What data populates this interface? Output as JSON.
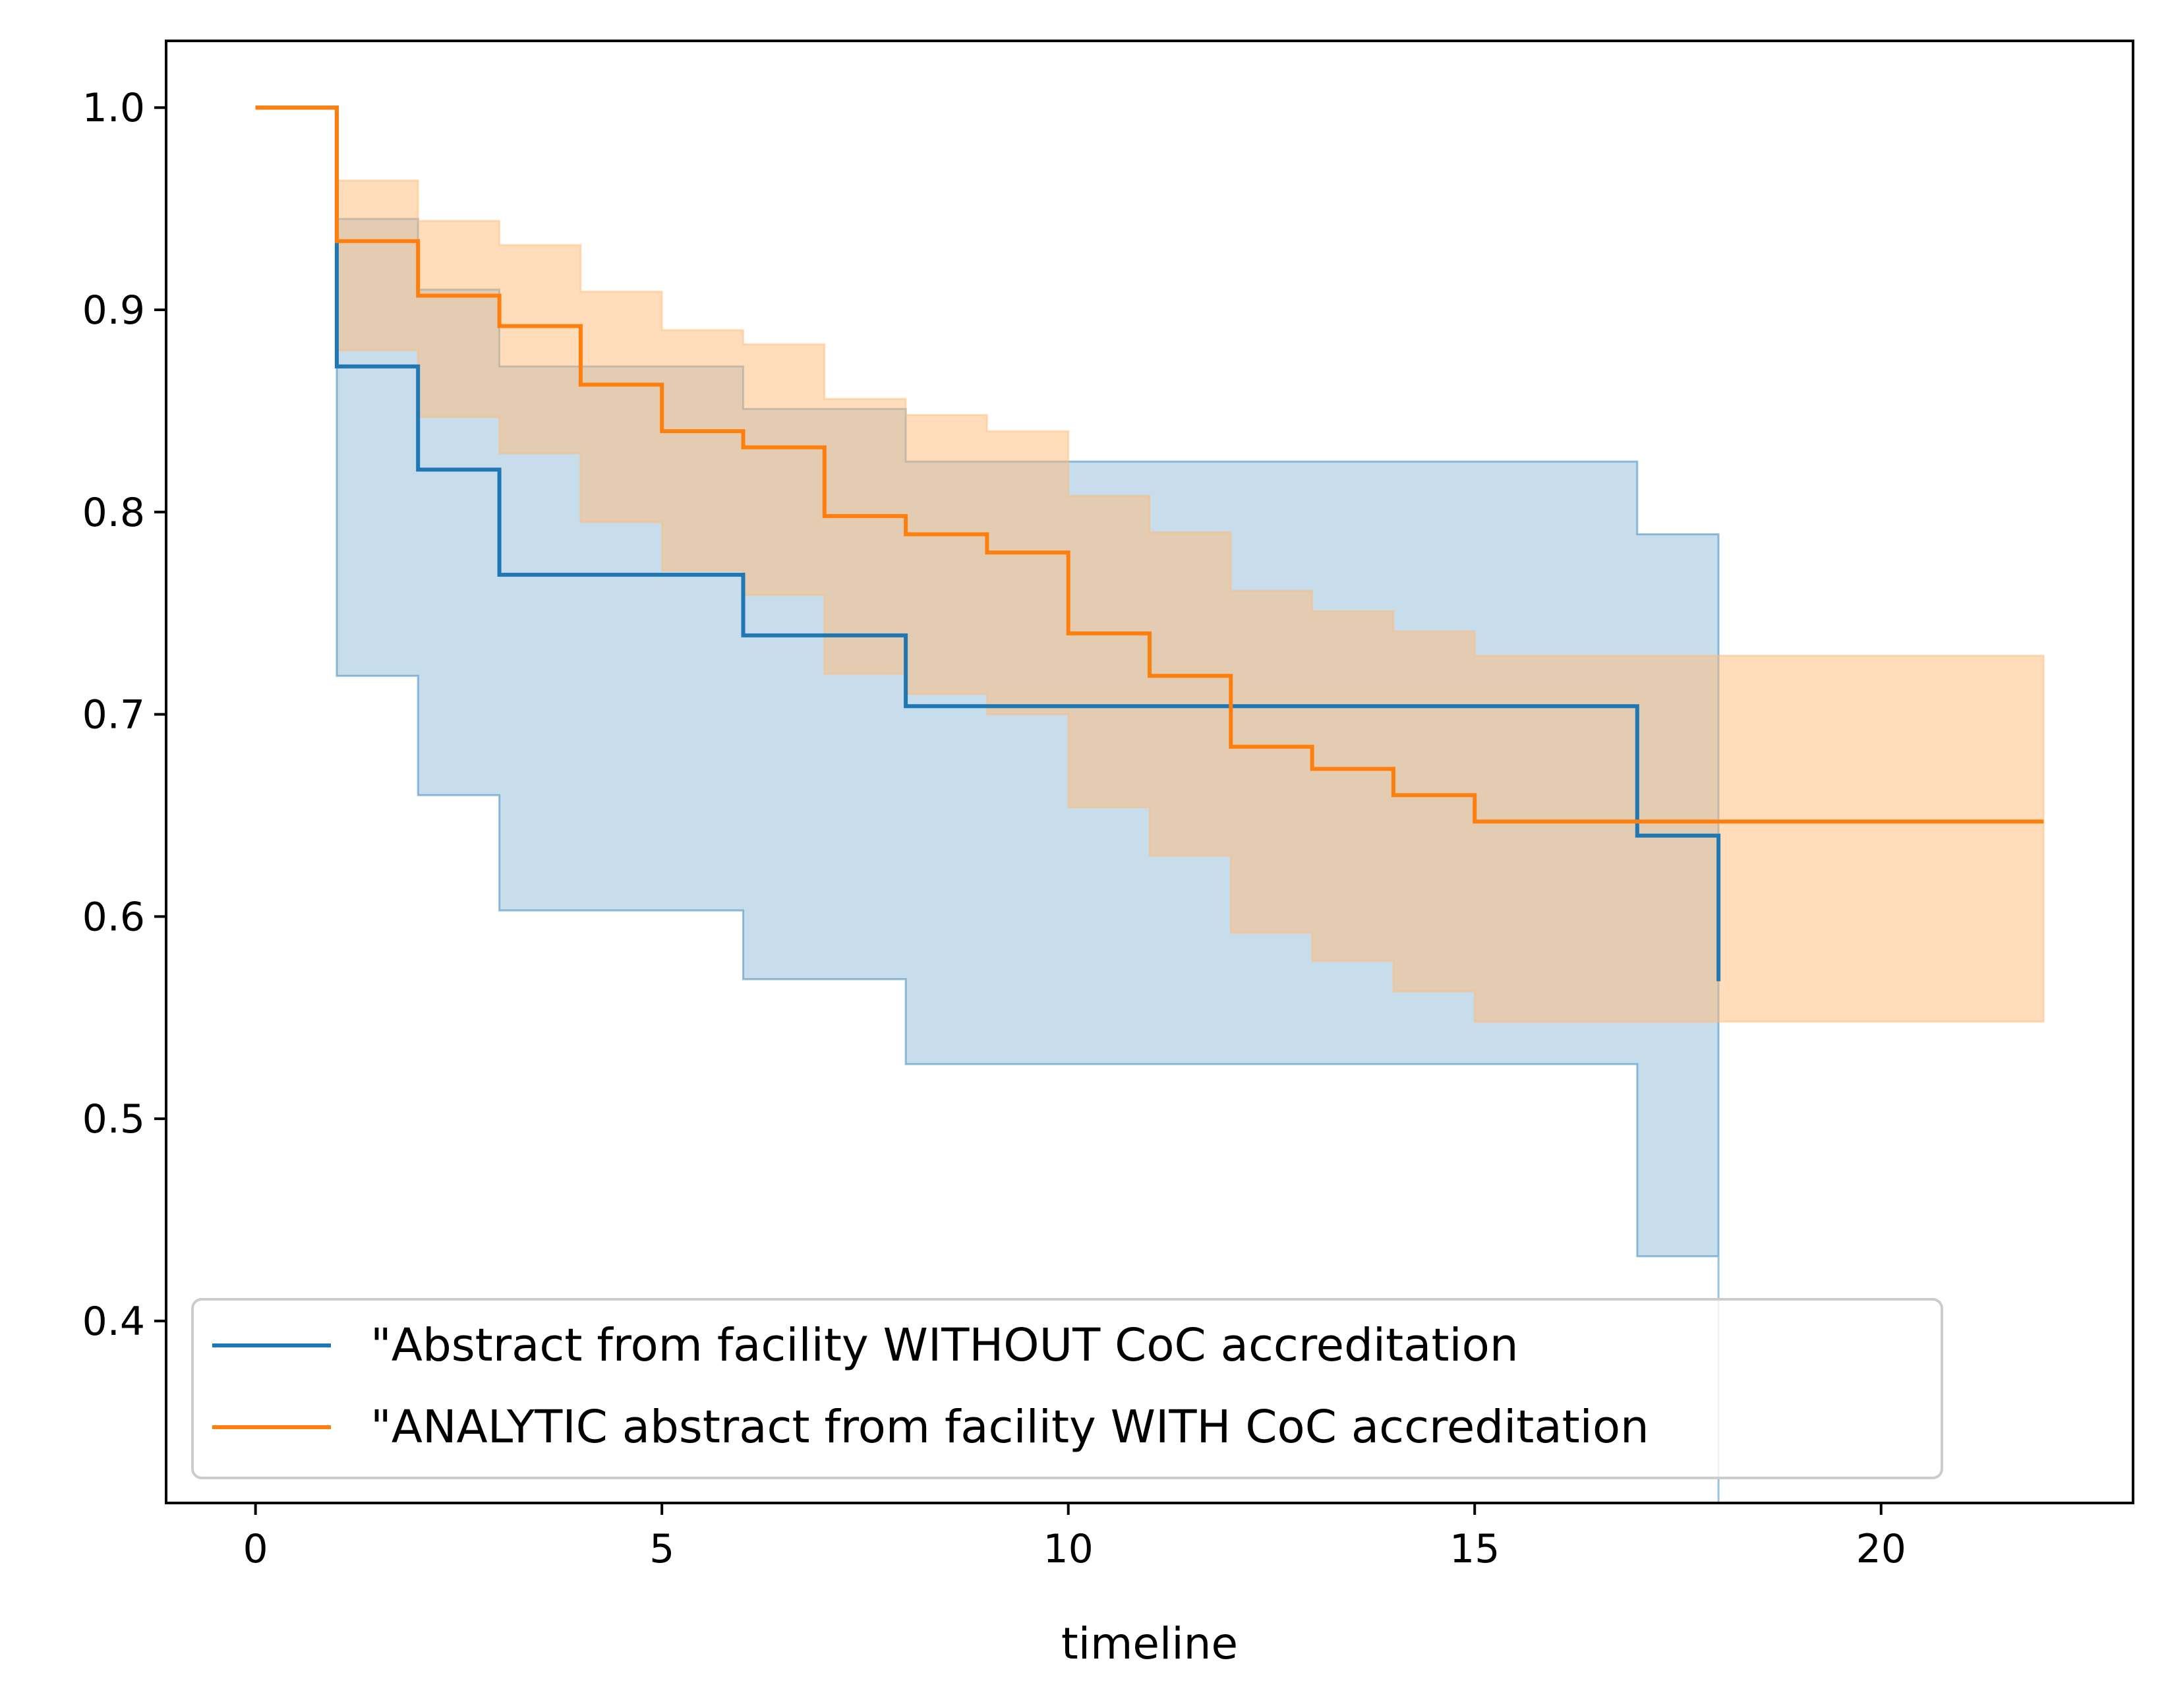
{
  "chart_data": {
    "type": "line",
    "subtype": "kaplan-meier step plot with confidence bands",
    "title": "",
    "xlabel": "timeline",
    "ylabel": "",
    "xlim": [
      -1.1,
      23.1
    ],
    "ylim": [
      0.31,
      1.033
    ],
    "xticks": [
      0,
      5,
      10,
      15,
      20
    ],
    "xtick_labels": [
      "0",
      "5",
      "10",
      "15",
      "20"
    ],
    "yticks": [
      0.4,
      0.5,
      0.6,
      0.7,
      0.8,
      0.9,
      1.0
    ],
    "ytick_labels": [
      "0.4",
      "0.5",
      "0.6",
      "0.7",
      "0.8",
      "0.9",
      "1.0"
    ],
    "grid": false,
    "legend_position": "lower-left",
    "series": [
      {
        "name": "\"Abstract from facility WITHOUT CoC accreditation",
        "color": "#1f77b4",
        "band_color": "#1f77b4",
        "x": [
          0,
          1,
          2,
          3,
          6,
          8,
          17,
          18
        ],
        "y": [
          1.0,
          0.872,
          0.821,
          0.769,
          0.739,
          0.704,
          0.64,
          0.568
        ],
        "upper": [
          1.0,
          0.945,
          0.91,
          0.872,
          0.851,
          0.825,
          0.789,
          0.789
        ],
        "lower": [
          1.0,
          0.719,
          0.66,
          0.603,
          0.569,
          0.527,
          0.432,
          0.29
        ],
        "x_end": 18
      },
      {
        "name": "\"ANALYTIC abstract from facility WITH CoC accreditation",
        "color": "#ff7f0e",
        "band_color": "#ffbb78",
        "x": [
          0,
          1,
          2,
          3,
          4,
          5,
          6,
          7,
          8,
          9,
          10,
          11,
          12,
          13,
          14,
          15
        ],
        "y": [
          1.0,
          0.934,
          0.907,
          0.892,
          0.863,
          0.84,
          0.832,
          0.798,
          0.789,
          0.78,
          0.74,
          0.719,
          0.684,
          0.673,
          0.66,
          0.647
        ],
        "upper": [
          1.0,
          0.964,
          0.944,
          0.932,
          0.909,
          0.89,
          0.883,
          0.856,
          0.848,
          0.84,
          0.808,
          0.79,
          0.761,
          0.751,
          0.741,
          0.729
        ],
        "lower": [
          1.0,
          0.88,
          0.847,
          0.829,
          0.795,
          0.771,
          0.759,
          0.72,
          0.71,
          0.7,
          0.654,
          0.63,
          0.592,
          0.578,
          0.563,
          0.548
        ],
        "x_end": 22
      }
    ]
  }
}
